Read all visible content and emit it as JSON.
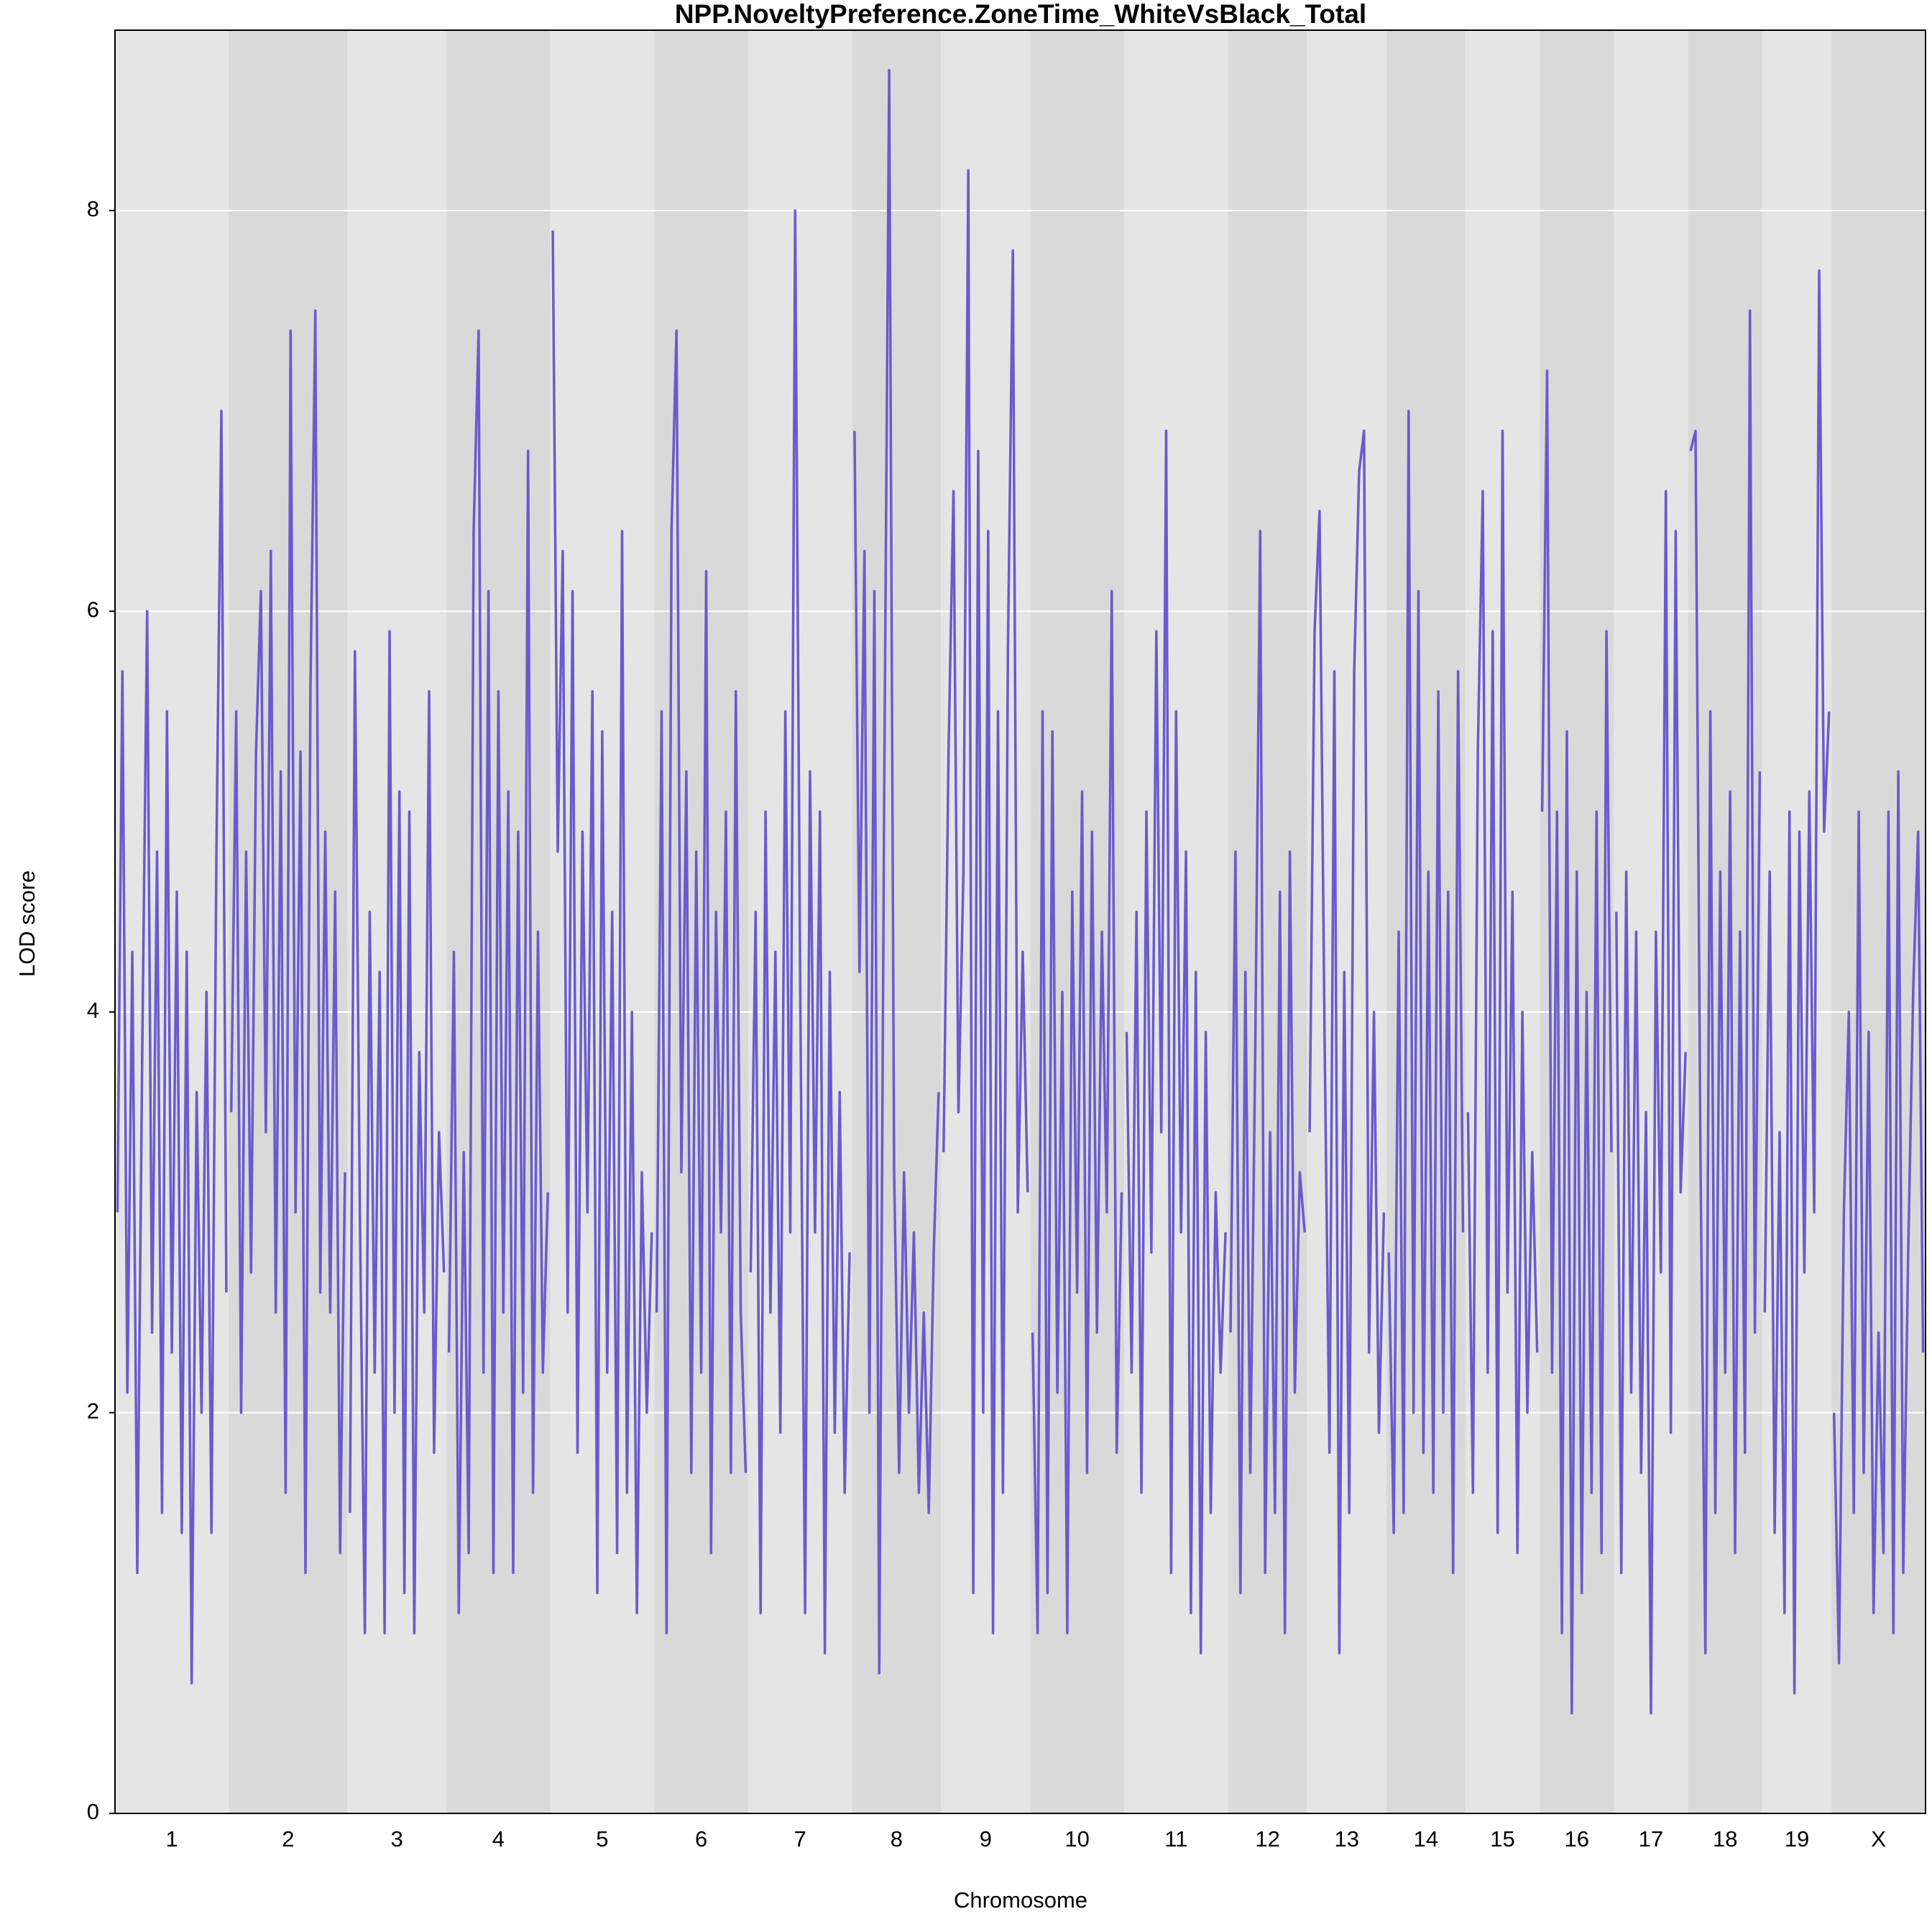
{
  "chart_data": {
    "type": "line",
    "title": "NPP.NoveltyPreference.ZoneTime_WhiteVsBlack_Total",
    "x_label": "Chromosome",
    "y_label": "LOD score",
    "ylim": [
      0,
      8.9
    ],
    "yticks": [
      0,
      2,
      4,
      6,
      8
    ],
    "grid": true,
    "color": "#6a5acd",
    "band_colors": [
      "#e5e5e5",
      "#d9d9d9"
    ],
    "chromosomes": [
      {
        "name": "1",
        "values": [
          3.0,
          5.7,
          2.1,
          4.3,
          1.2,
          3.8,
          6.0,
          2.4,
          4.8,
          1.5,
          5.5,
          2.3,
          4.6,
          1.4,
          4.3,
          0.65,
          3.6,
          2.0,
          4.1,
          1.4,
          4.8,
          7.0,
          2.6
        ]
      },
      {
        "name": "2",
        "values": [
          3.5,
          5.5,
          2.0,
          4.8,
          2.7,
          5.3,
          6.1,
          3.4,
          6.3,
          2.5,
          5.2,
          1.6,
          7.4,
          3.0,
          5.3,
          1.2,
          5.6,
          7.5,
          2.6,
          4.9,
          2.5,
          4.6,
          1.3,
          3.2
        ]
      },
      {
        "name": "3",
        "values": [
          1.5,
          5.8,
          3.0,
          0.9,
          4.5,
          2.2,
          4.2,
          0.9,
          5.9,
          2.0,
          5.1,
          1.1,
          5.0,
          0.9,
          3.8,
          2.5,
          5.6,
          1.8,
          3.4,
          2.7
        ]
      },
      {
        "name": "4",
        "values": [
          2.3,
          4.3,
          1.0,
          3.3,
          1.3,
          6.4,
          7.4,
          2.2,
          6.1,
          1.2,
          5.6,
          2.5,
          5.1,
          1.2,
          4.9,
          2.1,
          6.8,
          1.6,
          4.4,
          2.2,
          3.1
        ]
      },
      {
        "name": "5",
        "values": [
          7.9,
          4.8,
          6.3,
          2.5,
          6.1,
          1.8,
          4.9,
          3.0,
          5.6,
          1.1,
          5.4,
          2.2,
          4.5,
          1.3,
          6.4,
          1.6,
          4.0,
          1.0,
          3.2,
          2.0,
          2.9
        ]
      },
      {
        "name": "6",
        "values": [
          2.5,
          5.5,
          0.9,
          6.4,
          7.4,
          3.2,
          5.2,
          1.7,
          4.8,
          2.2,
          6.2,
          1.3,
          4.5,
          2.9,
          5.0,
          1.7,
          5.6,
          2.5,
          1.7
        ]
      },
      {
        "name": "7",
        "values": [
          2.7,
          4.5,
          1.0,
          5.0,
          2.5,
          4.3,
          1.9,
          5.5,
          2.9,
          8.0,
          4.2,
          1.0,
          5.2,
          2.9,
          5.0,
          0.8,
          4.2,
          1.9,
          3.6,
          1.6,
          2.8
        ]
      },
      {
        "name": "8",
        "values": [
          6.9,
          4.2,
          6.3,
          2.0,
          6.1,
          0.7,
          5.1,
          8.7,
          3.2,
          1.7,
          3.2,
          2.0,
          2.9,
          1.6,
          2.5,
          1.5,
          2.8,
          3.6
        ]
      },
      {
        "name": "9",
        "values": [
          3.3,
          5.3,
          6.6,
          3.5,
          4.7,
          8.2,
          1.1,
          6.8,
          2.0,
          6.4,
          0.9,
          5.5,
          1.6,
          5.8,
          7.8,
          3.0,
          4.3,
          3.1
        ]
      },
      {
        "name": "10",
        "values": [
          2.4,
          0.9,
          5.5,
          1.1,
          5.4,
          2.1,
          4.1,
          0.9,
          4.6,
          2.6,
          5.1,
          1.7,
          4.9,
          2.4,
          4.4,
          3.0,
          6.1,
          1.8,
          3.1
        ]
      },
      {
        "name": "11",
        "values": [
          3.9,
          2.2,
          4.5,
          1.6,
          5.0,
          2.8,
          5.9,
          3.4,
          6.9,
          1.2,
          5.5,
          2.9,
          4.8,
          1.0,
          4.2,
          0.8,
          3.9,
          1.5,
          3.1,
          2.2,
          2.9
        ]
      },
      {
        "name": "12",
        "values": [
          2.4,
          4.8,
          1.1,
          4.2,
          1.7,
          3.8,
          6.4,
          1.2,
          3.4,
          1.5,
          4.6,
          0.9,
          4.8,
          2.1,
          3.2,
          2.9
        ]
      },
      {
        "name": "13",
        "values": [
          3.4,
          5.9,
          6.5,
          3.9,
          1.8,
          5.7,
          0.8,
          4.2,
          1.5,
          5.7,
          6.7,
          6.9,
          2.3,
          4.0,
          1.9,
          3.0
        ]
      },
      {
        "name": "14",
        "values": [
          2.8,
          1.4,
          4.4,
          1.5,
          7.0,
          2.0,
          6.1,
          1.8,
          4.7,
          1.6,
          5.6,
          2.0,
          4.6,
          1.2,
          5.7,
          2.9
        ]
      },
      {
        "name": "15",
        "values": [
          3.5,
          1.6,
          5.3,
          6.6,
          2.2,
          5.9,
          1.4,
          6.9,
          2.6,
          4.6,
          1.3,
          4.0,
          2.0,
          3.3,
          2.3
        ]
      },
      {
        "name": "16",
        "values": [
          5.0,
          7.2,
          2.2,
          5.0,
          0.9,
          5.4,
          0.5,
          4.7,
          1.1,
          4.1,
          1.6,
          5.0,
          1.3,
          5.9,
          3.3
        ]
      },
      {
        "name": "17",
        "values": [
          4.5,
          1.2,
          4.7,
          2.1,
          4.4,
          1.7,
          3.5,
          0.5,
          4.4,
          2.7,
          6.6,
          1.9,
          6.4,
          3.1,
          3.8
        ]
      },
      {
        "name": "18",
        "values": [
          6.8,
          6.9,
          3.3,
          0.8,
          5.5,
          1.5,
          4.7,
          2.2,
          5.1,
          1.3,
          4.4,
          1.8,
          7.5,
          2.4,
          5.2
        ]
      },
      {
        "name": "19",
        "values": [
          2.5,
          4.7,
          1.4,
          3.4,
          1.0,
          5.0,
          0.6,
          4.9,
          2.7,
          5.1,
          3.0,
          7.7,
          4.9,
          5.5
        ]
      },
      {
        "name": "X",
        "values": [
          2.0,
          0.75,
          3.0,
          4.0,
          1.5,
          5.0,
          1.7,
          3.9,
          1.0,
          2.4,
          1.3,
          5.0,
          0.9,
          5.2,
          1.2,
          2.8,
          4.1,
          4.9,
          2.3
        ]
      }
    ]
  }
}
